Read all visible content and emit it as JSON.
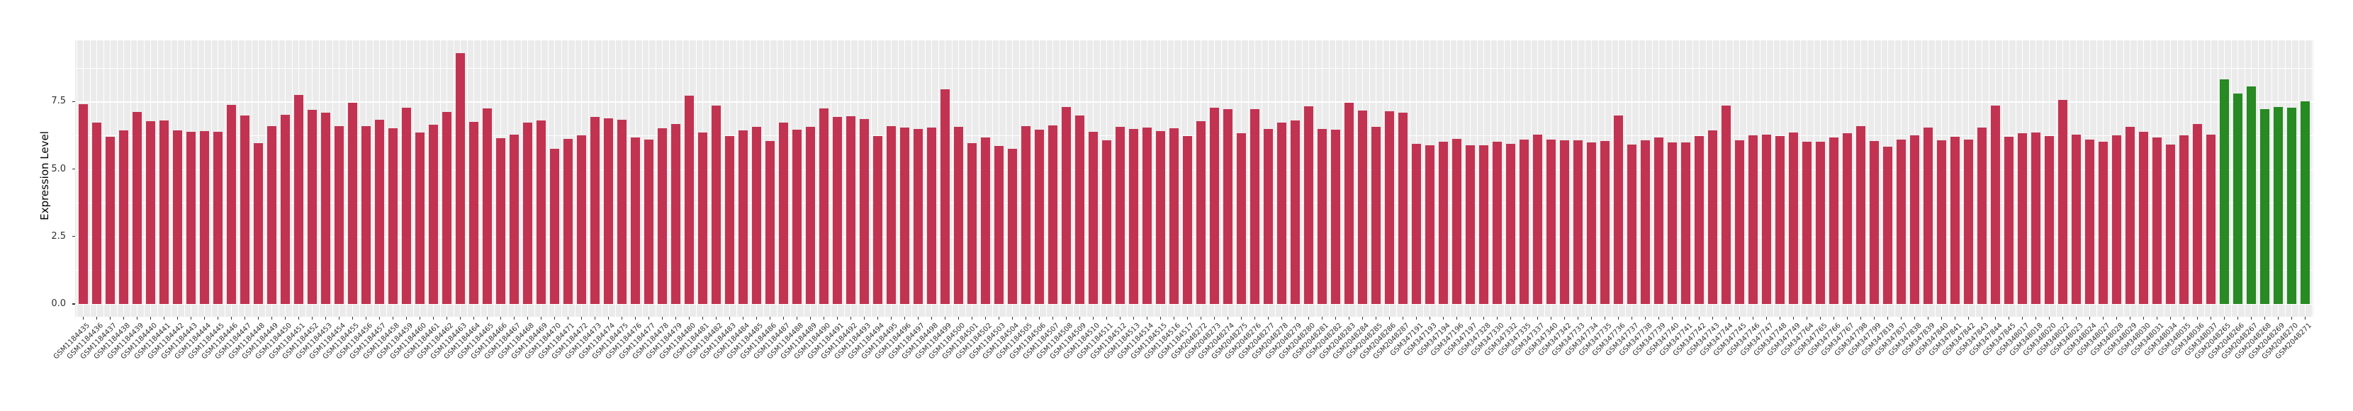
{
  "chart_data": {
    "type": "bar",
    "title": "",
    "xlabel": "",
    "ylabel": "Expression Level",
    "ylim": [
      0,
      9.77
    ],
    "yticks": [
      0.0,
      2.5,
      5.0,
      7.5
    ],
    "ytick_labels": [
      "0.0",
      "2.5",
      "5.0",
      "7.5"
    ],
    "grid": "on",
    "legend": "none",
    "colors": {
      "figure_background": "#FFFFFF",
      "panel_background": "#EBEBEB",
      "gridline": "#FFFFFF",
      "axis_text": "#303030",
      "red_bar": "#C23351",
      "green_bar": "#278A22"
    },
    "bar_groups": {
      "red": [
        0,
        158
      ],
      "green": [
        159,
        165
      ]
    },
    "categories": [
      "GSM1184435",
      "GSM1184436",
      "GSM1184437",
      "GSM1184438",
      "GSM1184439",
      "GSM1184440",
      "GSM1184441",
      "GSM1184442",
      "GSM1184443",
      "GSM1184444",
      "GSM1184445",
      "GSM1184446",
      "GSM1184447",
      "GSM1184448",
      "GSM1184449",
      "GSM1184450",
      "GSM1184451",
      "GSM1184452",
      "GSM1184453",
      "GSM1184454",
      "GSM1184455",
      "GSM1184456",
      "GSM1184457",
      "GSM1184458",
      "GSM1184459",
      "GSM1184460",
      "GSM1184461",
      "GSM1184462",
      "GSM1184463",
      "GSM1184464",
      "GSM1184465",
      "GSM1184466",
      "GSM1184467",
      "GSM1184468",
      "GSM1184469",
      "GSM1184470",
      "GSM1184471",
      "GSM1184472",
      "GSM1184473",
      "GSM1184474",
      "GSM1184475",
      "GSM1184476",
      "GSM1184477",
      "GSM1184478",
      "GSM1184479",
      "GSM1184480",
      "GSM1184481",
      "GSM1184482",
      "GSM1184483",
      "GSM1184484",
      "GSM1184485",
      "GSM1184486",
      "GSM1184487",
      "GSM1184488",
      "GSM1184489",
      "GSM1184490",
      "GSM1184491",
      "GSM1184492",
      "GSM1184493",
      "GSM1184494",
      "GSM1184495",
      "GSM1184496",
      "GSM1184497",
      "GSM1184498",
      "GSM1184499",
      "GSM1184500",
      "GSM1184501",
      "GSM1184502",
      "GSM1184503",
      "GSM1184504",
      "GSM1184505",
      "GSM1184506",
      "GSM1184507",
      "GSM1184508",
      "GSM1184509",
      "GSM1184510",
      "GSM1184511",
      "GSM1184512",
      "GSM1184513",
      "GSM1184514",
      "GSM1184515",
      "GSM1184516",
      "GSM1184517",
      "GSM2048272",
      "GSM2048273",
      "GSM2048274",
      "GSM2048275",
      "GSM2048276",
      "GSM2048277",
      "GSM2048278",
      "GSM2048279",
      "GSM2048280",
      "GSM2048281",
      "GSM2048282",
      "GSM2048283",
      "GSM2048284",
      "GSM2048285",
      "GSM2048286",
      "GSM2048287",
      "GSM347191",
      "GSM347193",
      "GSM347194",
      "GSM347196",
      "GSM347197",
      "GSM347328",
      "GSM347330",
      "GSM347332",
      "GSM347335",
      "GSM347337",
      "GSM347340",
      "GSM347342",
      "GSM347733",
      "GSM347734",
      "GSM347735",
      "GSM347736",
      "GSM347737",
      "GSM347738",
      "GSM347739",
      "GSM347740",
      "GSM347741",
      "GSM347742",
      "GSM347743",
      "GSM347744",
      "GSM347745",
      "GSM347746",
      "GSM347747",
      "GSM347748",
      "GSM347749",
      "GSM347764",
      "GSM347765",
      "GSM347766",
      "GSM347767",
      "GSM347798",
      "GSM347799",
      "GSM347819",
      "GSM347837",
      "GSM347838",
      "GSM347839",
      "GSM347840",
      "GSM347841",
      "GSM347842",
      "GSM347843",
      "GSM347844",
      "GSM347845",
      "GSM348017",
      "GSM348018",
      "GSM348020",
      "GSM348022",
      "GSM348023",
      "GSM348024",
      "GSM348027",
      "GSM348028",
      "GSM348029",
      "GSM348030",
      "GSM348031",
      "GSM348034",
      "GSM348035",
      "GSM348036",
      "GSM348037",
      "GSM2048265",
      "GSM2048266",
      "GSM2048267",
      "GSM2048268",
      "GSM2048269",
      "GSM2048270",
      "GSM2048271"
    ],
    "values": [
      7.41,
      6.73,
      6.19,
      6.44,
      7.12,
      6.76,
      6.8,
      6.44,
      6.37,
      6.41,
      6.39,
      7.38,
      6.99,
      5.97,
      6.59,
      7.0,
      7.75,
      7.18,
      7.08,
      6.58,
      7.45,
      6.58,
      6.83,
      6.51,
      7.27,
      6.35,
      6.65,
      7.12,
      9.3,
      6.75,
      7.24,
      6.15,
      6.27,
      6.73,
      6.79,
      5.74,
      6.11,
      6.25,
      6.93,
      6.88,
      6.82,
      6.17,
      6.09,
      6.51,
      6.66,
      7.71,
      6.35,
      7.34,
      6.21,
      6.43,
      6.57,
      6.04,
      6.72,
      6.45,
      6.57,
      7.24,
      6.92,
      6.95,
      6.85,
      6.22,
      6.59,
      6.54,
      6.48,
      6.53,
      7.95,
      6.57,
      5.95,
      6.17,
      5.84,
      5.76,
      6.6,
      6.45,
      6.62,
      7.3,
      6.98,
      6.39,
      6.05,
      6.56,
      6.48,
      6.54,
      6.41,
      6.51,
      6.22,
      6.76,
      7.28,
      7.21,
      6.33,
      7.23,
      6.48,
      6.72,
      6.8,
      7.31,
      6.49,
      6.46,
      7.46,
      7.17,
      6.56,
      7.13,
      7.08,
      5.92,
      5.89,
      6.01,
      6.12,
      5.88,
      5.88,
      6.0,
      5.94,
      6.08,
      6.26,
      6.09,
      6.05,
      6.06,
      5.98,
      6.04,
      6.98,
      5.91,
      6.05,
      6.16,
      5.98,
      5.98,
      6.22,
      6.44,
      7.34,
      6.05,
      6.25,
      6.27,
      6.23,
      6.34,
      6.02,
      6.02,
      6.17,
      6.32,
      6.58,
      6.03,
      5.83,
      6.09,
      6.25,
      6.54,
      6.05,
      6.2,
      6.08,
      6.53,
      7.34,
      6.19,
      6.32,
      6.35,
      6.21,
      7.56,
      6.26,
      6.09,
      6.0,
      6.24,
      6.57,
      6.37,
      6.16,
      5.91,
      6.25,
      6.66,
      6.26,
      8.33,
      7.8,
      8.07,
      7.22,
      7.3,
      7.27,
      7.51
    ]
  }
}
